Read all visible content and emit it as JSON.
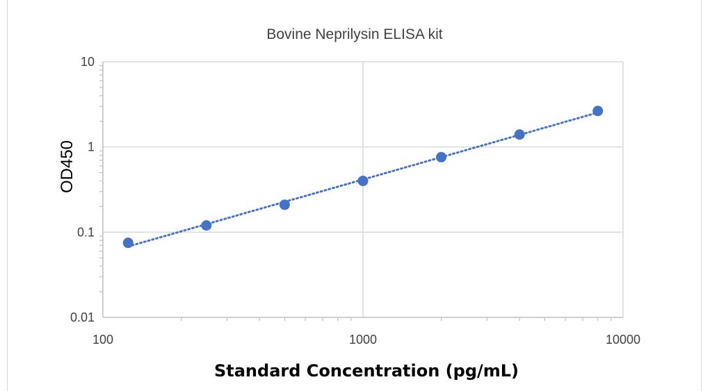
{
  "chart_data": {
    "type": "scatter",
    "title": "Bovine Neprilysin  ELISA kit",
    "xlabel": "Standard Concentration (pg/mL)",
    "ylabel": "OD450",
    "x_scale": "log",
    "y_scale": "log",
    "xlim": [
      100,
      10000
    ],
    "ylim": [
      0.01,
      10
    ],
    "x_ticks": [
      "100",
      "1000",
      "10000"
    ],
    "y_ticks": [
      "0.01",
      "0.1",
      "1",
      "10"
    ],
    "grid": true,
    "trendline": "dotted",
    "legend": "none",
    "colors": {
      "marker": "#4472c4",
      "grid": "#d9d9d9",
      "axis": "#bfbfbf"
    },
    "series": [
      {
        "x": [
          125,
          250,
          500,
          1000,
          2000,
          4000,
          8000
        ],
        "y": [
          0.075,
          0.12,
          0.21,
          0.4,
          0.76,
          1.4,
          2.65
        ]
      }
    ]
  }
}
